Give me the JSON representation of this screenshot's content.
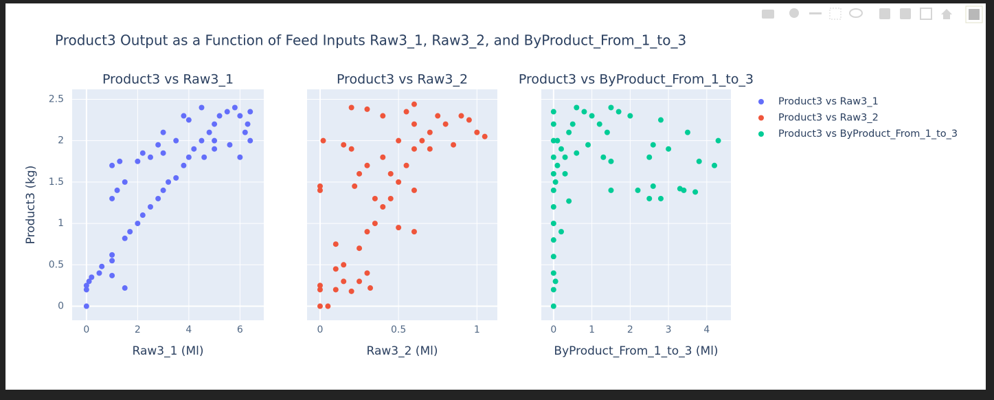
{
  "title": "Product3 Output as a Function of Feed Inputs Raw3_1, Raw3_2, and ByProduct_From_1_to_3",
  "chart_data": [
    {
      "type": "scatter",
      "title": "Product3 vs Raw3_1",
      "x_label": "Raw3_1 (Ml)",
      "y_label": "Product3 (kg)",
      "xlim": [
        -0.56,
        6.93
      ],
      "xticks": [
        0,
        2,
        4,
        6
      ],
      "ylim": [
        -0.17,
        2.62
      ],
      "yticks": [
        0,
        0.5,
        1,
        1.5,
        2,
        2.5
      ],
      "grid": true,
      "x": [
        0,
        0,
        0,
        0.1,
        0.2,
        0.5,
        0.6,
        1,
        1,
        1,
        1.5,
        1.5,
        1.7,
        2,
        2.2,
        2.5,
        2.8,
        3,
        3.2,
        3.5,
        3.8,
        4,
        4.2,
        4.5,
        4.8,
        5,
        5.2,
        5.5,
        5.8,
        6,
        6.3,
        6.4,
        6.2,
        5.6,
        5,
        4.6,
        1,
        1.2,
        1.5,
        1,
        1.3,
        2,
        2.2,
        2.5,
        3,
        3.8,
        4,
        3,
        2.8,
        4.5,
        6,
        5,
        6.4,
        3.5
      ],
      "series": [
        {
          "name": "Product3 vs Raw3_1",
          "color": "#636efa",
          "values": [
            0,
            0.2,
            0.25,
            0.3,
            0.35,
            0.4,
            0.48,
            0.55,
            0.62,
            0.37,
            0.22,
            0.82,
            0.9,
            1.0,
            1.1,
            1.2,
            1.3,
            1.4,
            1.5,
            1.55,
            1.7,
            1.8,
            1.9,
            2.0,
            2.1,
            2.2,
            2.3,
            2.35,
            2.4,
            2.3,
            2.2,
            2.0,
            2.1,
            1.95,
            1.9,
            1.8,
            1.3,
            1.4,
            1.5,
            1.7,
            1.75,
            1.75,
            1.85,
            1.8,
            1.85,
            2.3,
            2.25,
            2.1,
            1.95,
            2.4,
            1.8,
            2.0,
            2.35,
            2.0
          ]
        }
      ]
    },
    {
      "type": "scatter",
      "title": "Product3 vs Raw3_2",
      "x_label": "Raw3_2 (Ml)",
      "xlim": [
        -0.083,
        1.13
      ],
      "xticks": [
        0,
        0.5,
        1
      ],
      "ylim": [
        -0.17,
        2.62
      ],
      "yticks": [
        0,
        0.5,
        1,
        1.5,
        2,
        2.5
      ],
      "grid": true,
      "x": [
        0,
        0,
        0,
        0.05,
        0,
        0,
        0.02,
        0.1,
        0.1,
        0.15,
        0.15,
        0.2,
        0.25,
        0.25,
        0.3,
        0.3,
        0.32,
        0.35,
        0.4,
        0.45,
        0.5,
        0.55,
        0.6,
        0.65,
        0.7,
        0.6,
        0.55,
        0.6,
        0.8,
        0.9,
        1,
        1.05,
        0.95,
        0.2,
        0.3,
        0.4,
        0.2,
        0.25,
        0.15,
        0.3,
        0.4,
        0.5,
        0.7,
        0.6,
        0.6,
        0.5,
        0.45,
        0.35,
        0.22,
        0.1,
        0.85,
        0.75
      ],
      "series": [
        {
          "name": "Product3 vs Raw3_2",
          "color": "#ef553b",
          "values": [
            0,
            0.2,
            0.25,
            0,
            1.4,
            1.45,
            2.0,
            0.2,
            0.45,
            0.3,
            0.5,
            0.18,
            0.3,
            0.7,
            0.4,
            0.9,
            0.22,
            1.0,
            1.2,
            1.3,
            1.5,
            1.7,
            1.9,
            2.0,
            2.1,
            2.2,
            2.35,
            2.44,
            2.2,
            2.3,
            2.1,
            2.05,
            2.25,
            2.4,
            2.38,
            2.3,
            1.9,
            1.6,
            1.95,
            1.7,
            1.8,
            2.0,
            1.9,
            1.4,
            0.9,
            0.95,
            1.6,
            1.3,
            1.45,
            0.75,
            1.95,
            2.3
          ]
        }
      ]
    },
    {
      "type": "scatter",
      "title": "Product3 vs ByProduct_From_1_to_3",
      "x_label": "ByProduct_From_1_to_3 (Ml)",
      "xlim": [
        -0.32,
        4.63
      ],
      "xticks": [
        0,
        1,
        2,
        3,
        4
      ],
      "ylim": [
        -0.17,
        2.62
      ],
      "yticks": [
        0,
        0.5,
        1,
        1.5,
        2,
        2.5
      ],
      "grid": true,
      "x": [
        0,
        0,
        0,
        0,
        0,
        0,
        0,
        0,
        0,
        0,
        0,
        0,
        0,
        0.05,
        0.05,
        0.1,
        0.1,
        0.2,
        0.3,
        0.3,
        0.4,
        0.5,
        0.6,
        0.8,
        1,
        1.2,
        1.5,
        1.7,
        2,
        1.4,
        1.3,
        1.5,
        2.5,
        2.6,
        3,
        3.5,
        4.3,
        4.2,
        3.8,
        1.5,
        2.2,
        2.6,
        2.8,
        3.3,
        3.4,
        3.7,
        2.5,
        0.4,
        0.2,
        0.6,
        0.9,
        2.8
      ],
      "series": [
        {
          "name": "Product3 vs ByProduct_From_1_to_3",
          "color": "#00cc96",
          "values": [
            0,
            0.2,
            0.4,
            0.6,
            0.8,
            1.0,
            1.2,
            1.4,
            1.6,
            1.8,
            2.0,
            2.2,
            2.35,
            0.3,
            1.5,
            1.7,
            2.0,
            1.9,
            1.8,
            1.6,
            2.1,
            2.2,
            2.4,
            2.35,
            2.3,
            2.2,
            2.4,
            2.35,
            2.3,
            2.1,
            1.8,
            1.75,
            1.8,
            1.95,
            1.9,
            2.1,
            2.0,
            1.7,
            1.75,
            1.4,
            1.4,
            1.45,
            1.3,
            1.42,
            1.4,
            1.38,
            1.3,
            1.27,
            0.9,
            1.85,
            1.95,
            2.25
          ]
        }
      ]
    }
  ]
}
